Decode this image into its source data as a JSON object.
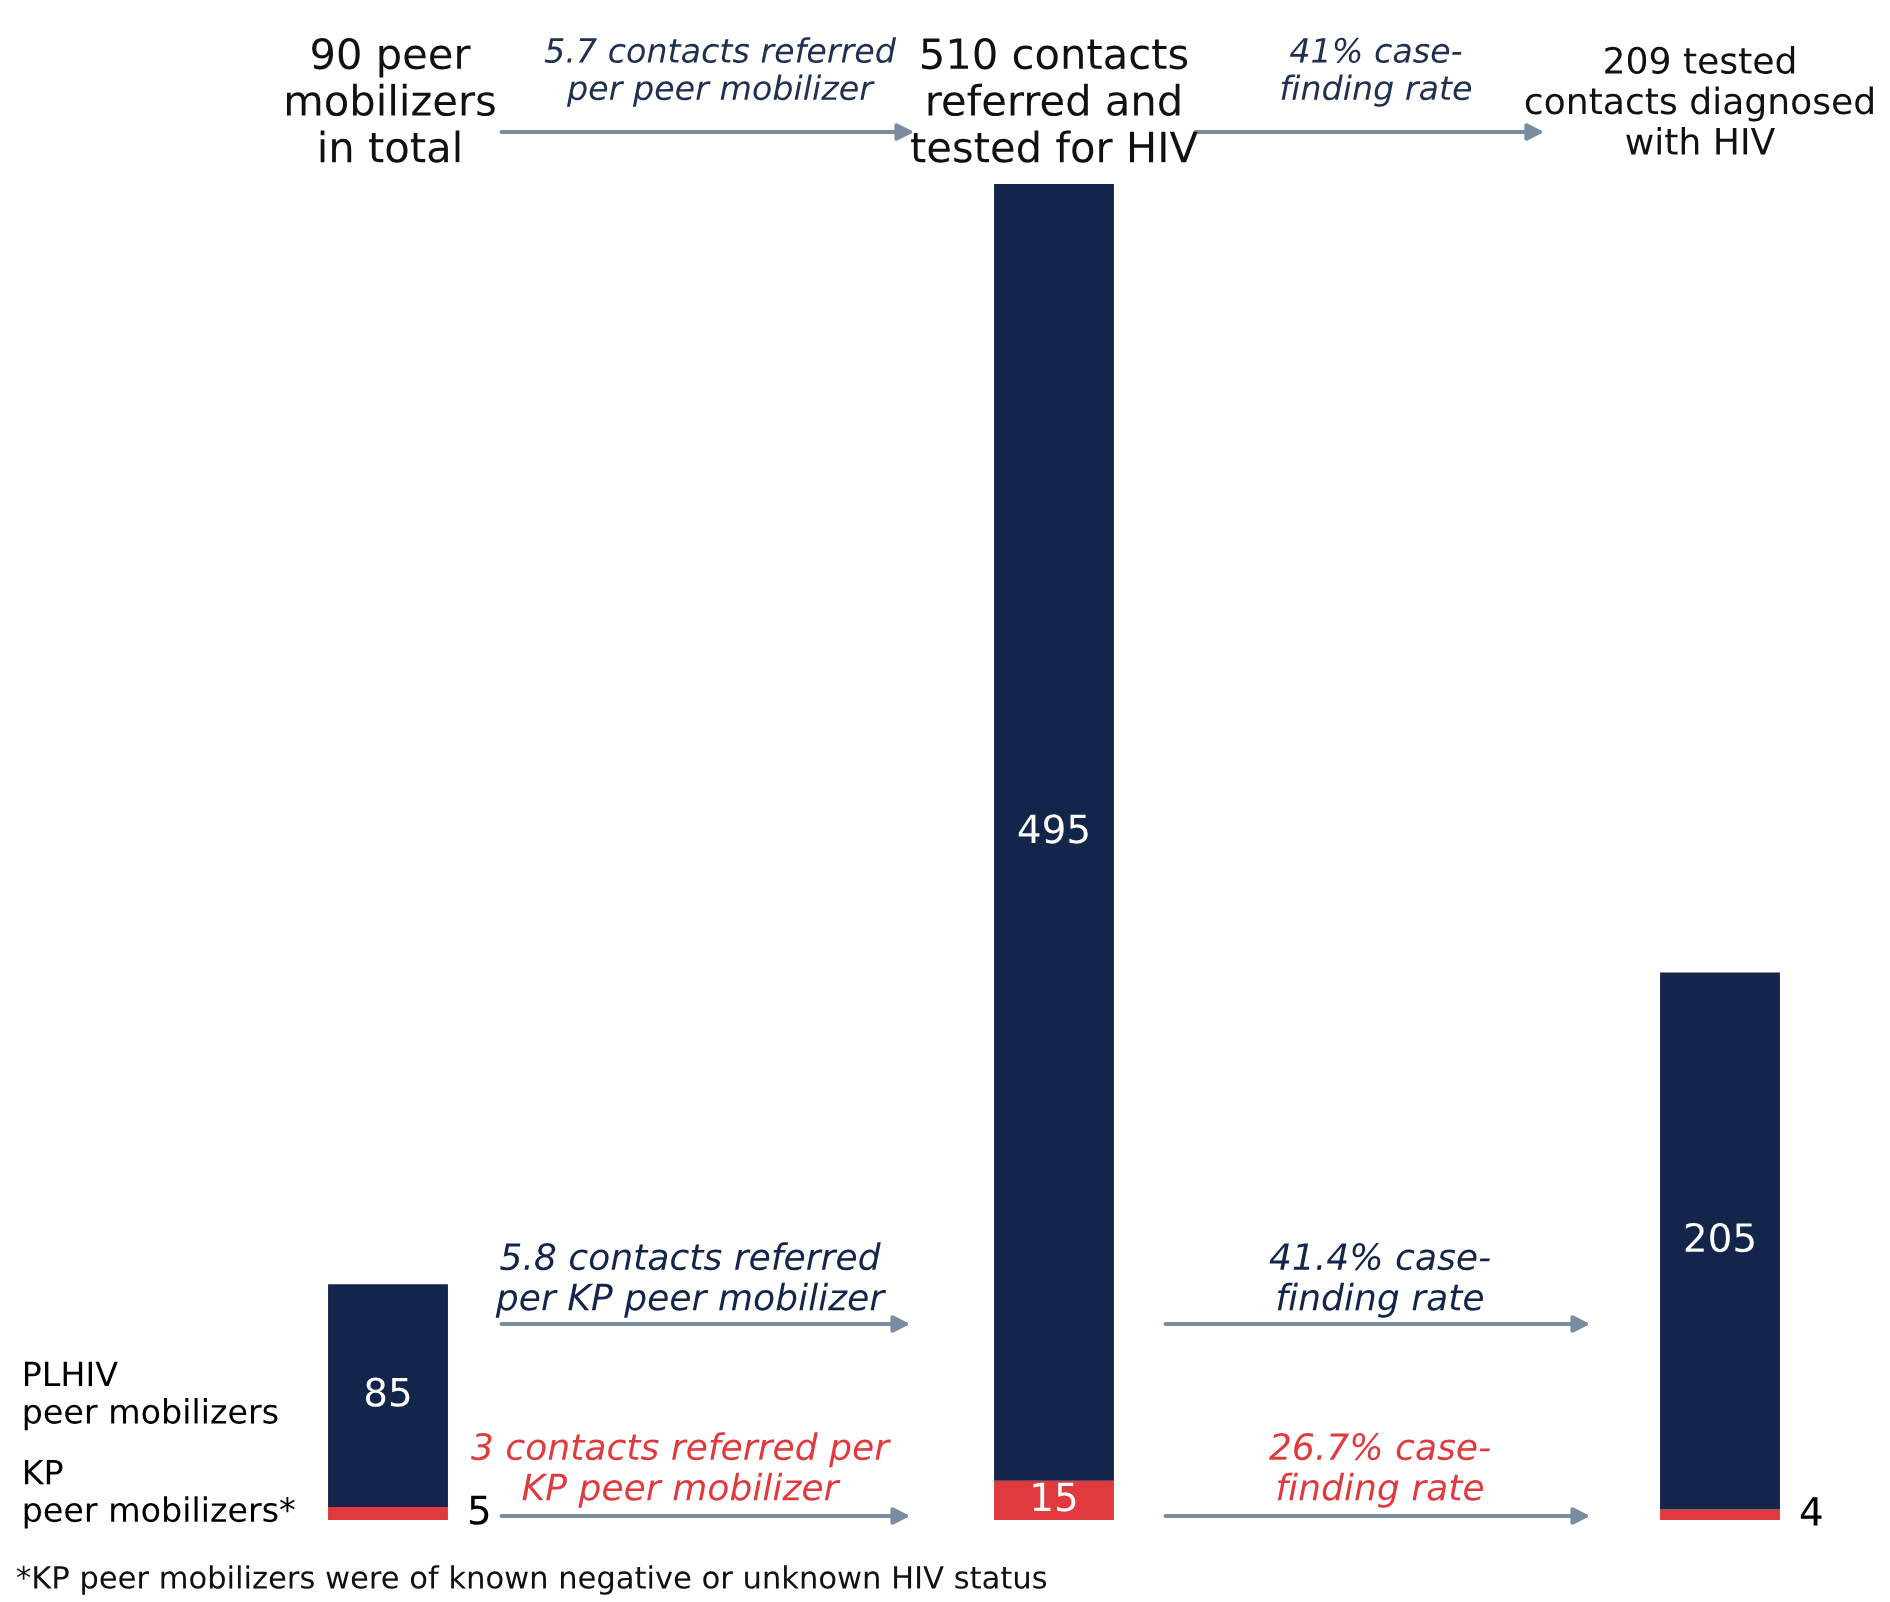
{
  "chart_data": {
    "type": "bar",
    "stacked": true,
    "categories": [
      null,
      null,
      null
    ],
    "series": [
      {
        "name": "KP peer mobilizers*",
        "color": "#e03a3e",
        "values": [
          5,
          15,
          4
        ]
      },
      {
        "name": "PLHIV peer mobilizers",
        "color": "#13254b",
        "values": [
          85,
          495,
          205
        ]
      }
    ],
    "data_labels": true,
    "legend": false,
    "annotations": [
      "90 peer\nmobilizers\nin total",
      "5.7 contacts referred\nper peer mobilizer",
      "510 contacts\nreferred and\ntested for HIV",
      "41% case-\nfinding rate",
      "209 tested\ncontacts diagnosed\nwith HIV",
      "5.8 contacts referred\nper KP peer mobilizer",
      "41.4% case-\nfinding rate",
      "3 contacts referred per\nKP peer mobilizer",
      "26.7% case-\nfinding rate",
      "*KP peer mobilizers were of known negative or unknown HIV status"
    ]
  }
}
